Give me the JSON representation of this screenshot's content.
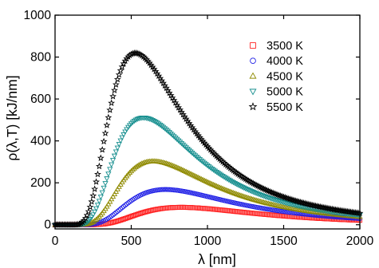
{
  "chart_data": {
    "type": "scatter",
    "title": "",
    "xlabel": "λ [nm]",
    "ylabel": "ρ(λ,T) [kJ/nm]",
    "xlim": [
      0,
      2000
    ],
    "ylim": [
      -20,
      1000
    ],
    "xticks": [
      0,
      500,
      1000,
      1500,
      2000
    ],
    "yticks": [
      0,
      200,
      400,
      600,
      800,
      1000
    ],
    "grid": false,
    "legend_position": "top-right",
    "x_sampling": {
      "start": 0,
      "end": 2000,
      "step": 10
    },
    "series": [
      {
        "name": "3500 K",
        "temperature": 3500,
        "marker": "square",
        "color": "#ff2020",
        "peak_x": 828,
        "peak_y": 83
      },
      {
        "name": "4000 K",
        "temperature": 4000,
        "marker": "circle",
        "color": "#1f1fe6",
        "peak_x": 725,
        "peak_y": 168
      },
      {
        "name": "4500 K",
        "temperature": 4500,
        "marker": "triangle-up",
        "color": "#8f8a00",
        "peak_x": 644,
        "peak_y": 303
      },
      {
        "name": "5000 K",
        "temperature": 5000,
        "marker": "triangle-down",
        "color": "#178f8f",
        "peak_x": 580,
        "peak_y": 511
      },
      {
        "name": "5500 K",
        "temperature": 5500,
        "marker": "star",
        "color": "#000000",
        "peak_x": 527,
        "peak_y": 819
      }
    ]
  }
}
